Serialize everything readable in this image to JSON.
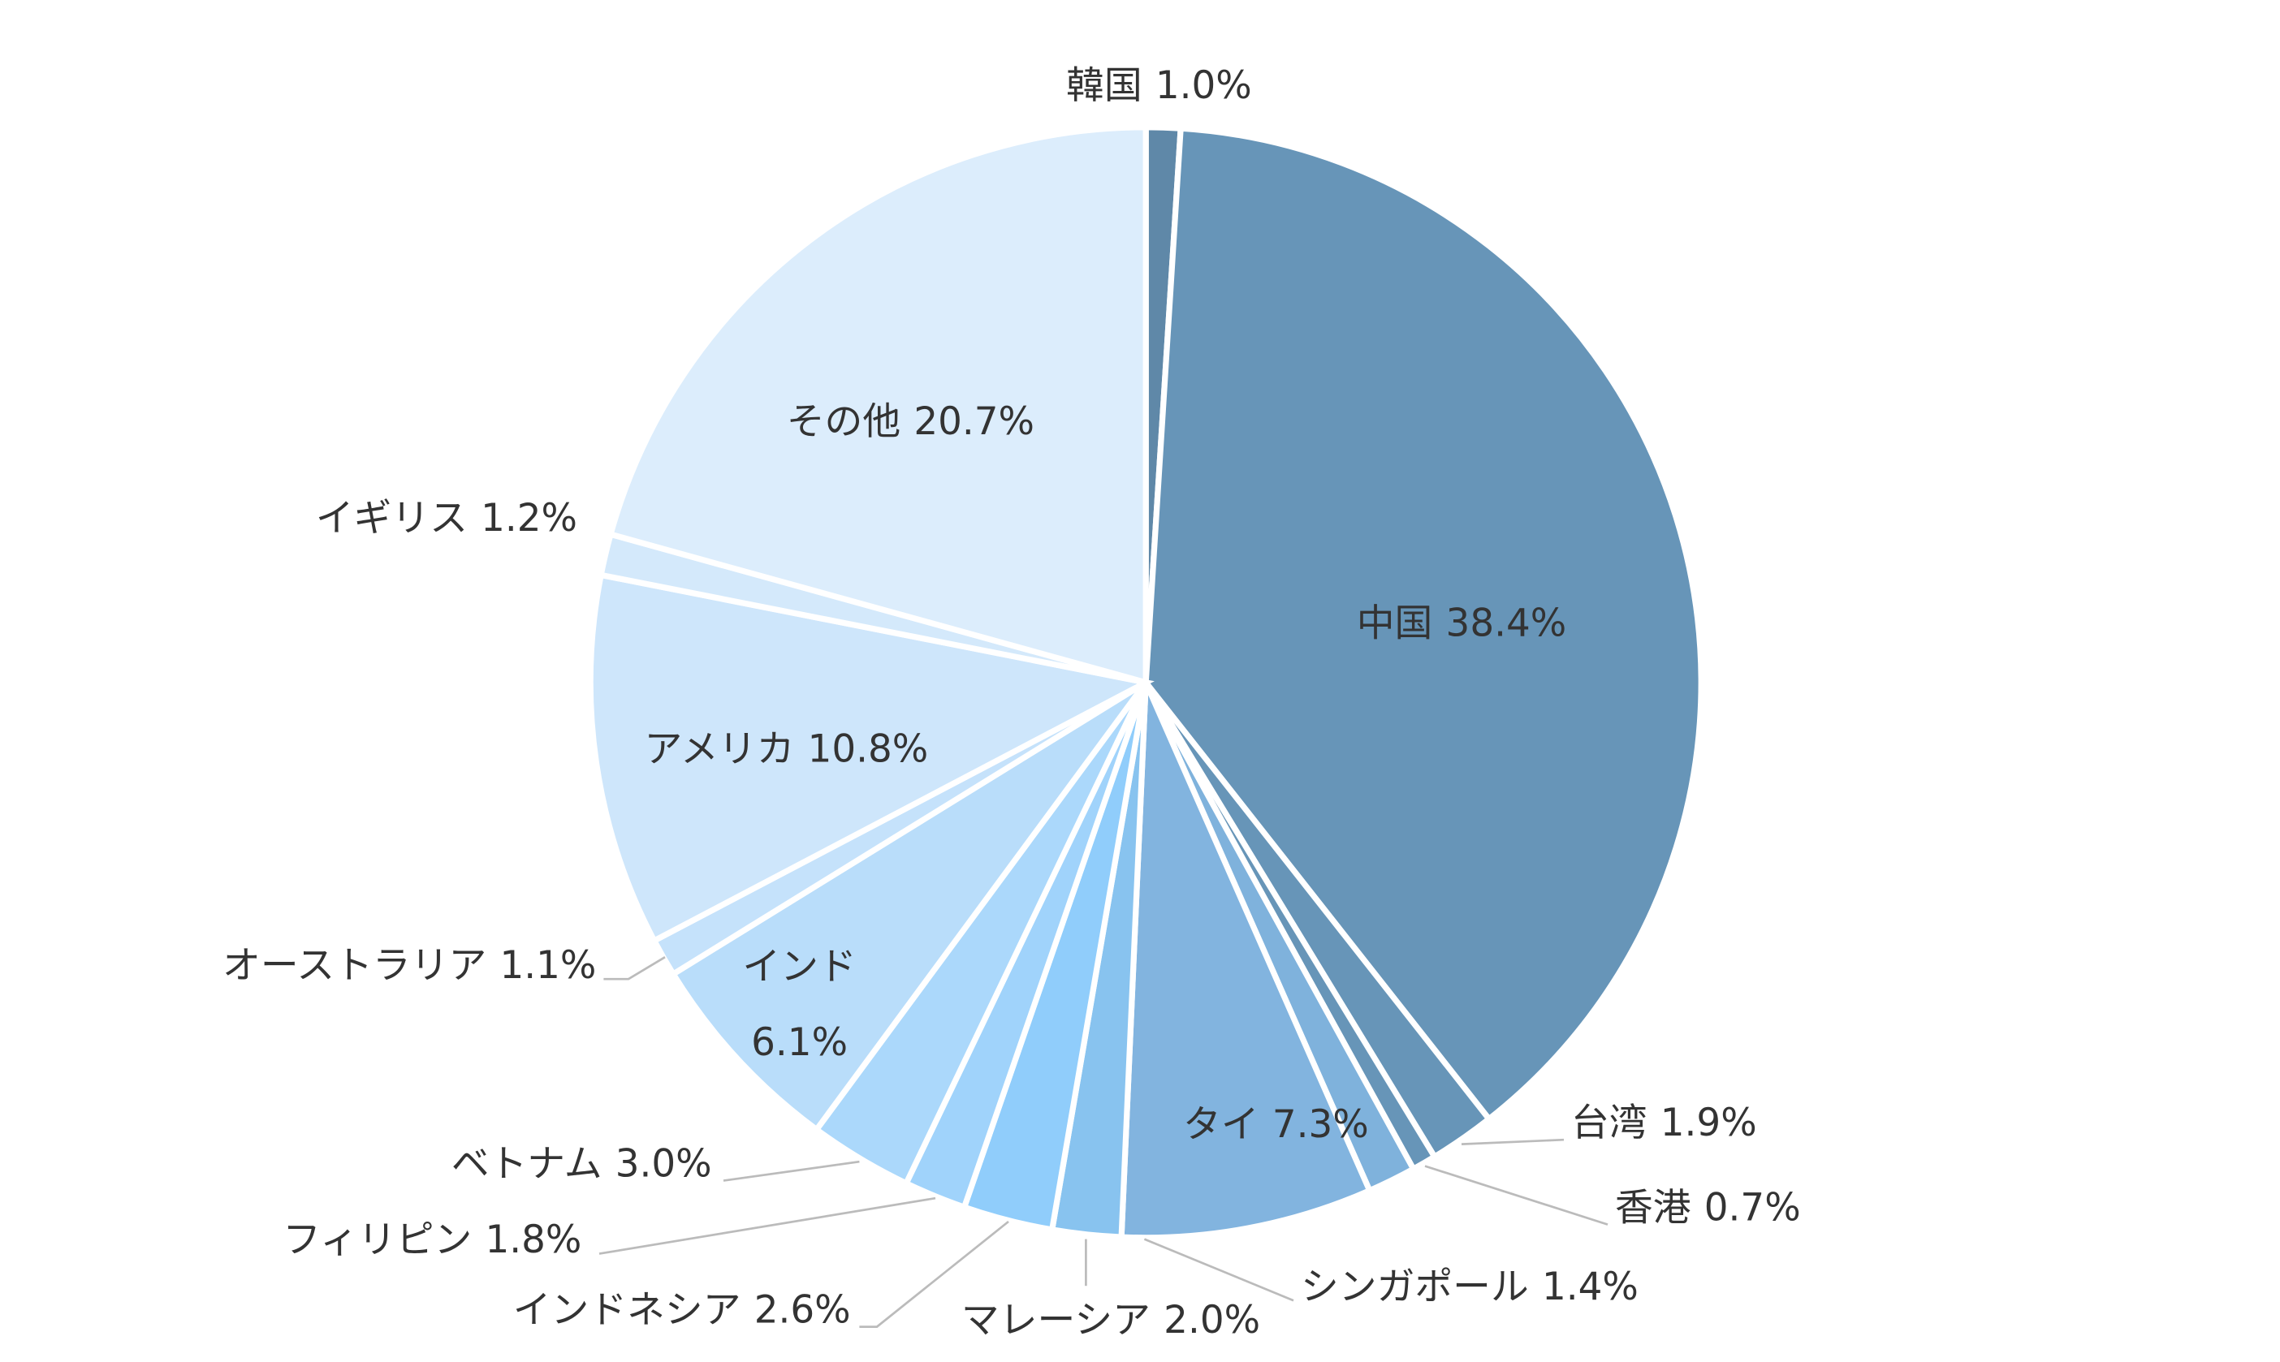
{
  "chart_data": {
    "type": "pie",
    "categories": [
      "韓国",
      "中国",
      "台湾",
      "香港",
      "シンガポール",
      "タイ",
      "マレーシア",
      "インドネシア",
      "フィリピン",
      "ベトナム",
      "インド",
      "オーストラリア",
      "アメリカ",
      "イギリス",
      "その他"
    ],
    "values": [
      1.0,
      38.4,
      1.9,
      0.7,
      1.4,
      7.3,
      2.0,
      2.6,
      1.8,
      3.0,
      6.1,
      1.1,
      10.8,
      1.2,
      20.7
    ],
    "value_labels": [
      "1.0%",
      "38.4%",
      "1.9%",
      "0.7%",
      "1.4%",
      "7.3%",
      "2.0%",
      "2.6%",
      "1.8%",
      "3.0%",
      "6.1%",
      "1.1%",
      "10.8%",
      "1.2%",
      "20.7%"
    ],
    "colors": [
      "#5f88a8",
      "#6795b8",
      "#6795b8",
      "#6795b8",
      "#7fb2dc",
      "#82b4df",
      "#88c3ef",
      "#90cdfb",
      "#a0d3fb",
      "#abd8fb",
      "#b9ddfa",
      "#c5e2fb",
      "#cee6fb",
      "#d4e9fb",
      "#dcedfc"
    ]
  }
}
